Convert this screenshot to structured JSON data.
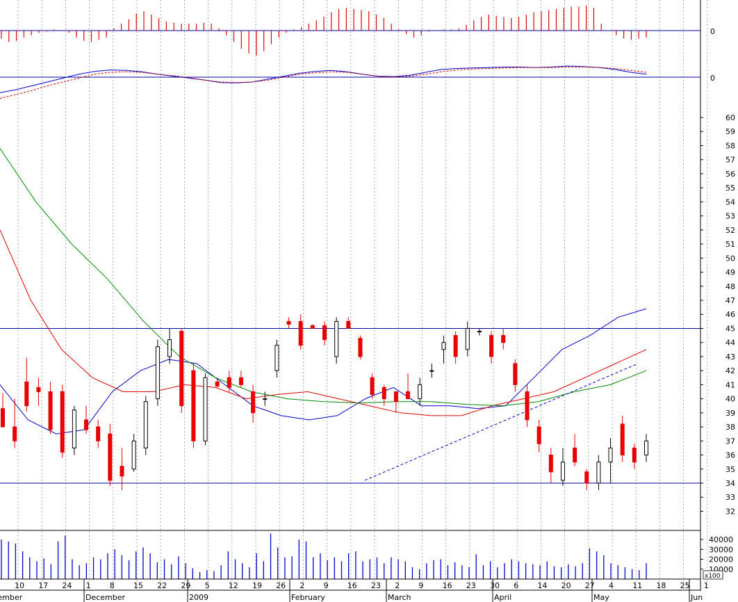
{
  "chart_data": [
    {
      "type": "histogram",
      "panel": "macd_histogram",
      "zero_label": "0",
      "values": [
        -0.35,
        -0.5,
        -0.45,
        -0.3,
        -0.2,
        -0.1,
        -0.05,
        0.05,
        0.0,
        -0.1,
        -0.3,
        -0.45,
        -0.5,
        -0.4,
        -0.3,
        0.1,
        0.3,
        0.5,
        0.75,
        0.85,
        0.7,
        0.55,
        0.4,
        0.35,
        0.3,
        0.3,
        0.3,
        0.35,
        0.3,
        0.1,
        -0.2,
        -0.5,
        -0.8,
        -1.0,
        -1.1,
        -0.9,
        -0.6,
        -0.3,
        -0.1,
        0.05,
        0.15,
        0.3,
        0.45,
        0.6,
        0.8,
        0.95,
        1.0,
        0.95,
        0.9,
        0.85,
        0.7,
        0.55,
        0.3,
        0.05,
        -0.15,
        -0.3,
        -0.2,
        -0.05,
        0.0,
        0.05,
        0.05,
        0.1,
        0.25,
        0.45,
        0.6,
        0.7,
        0.65,
        0.6,
        0.55,
        0.6,
        0.7,
        0.8,
        0.85,
        0.9,
        0.95,
        1.0,
        1.05,
        1.05,
        1.1,
        1.0,
        0.3,
        0.0,
        -0.2,
        -0.35,
        -0.4,
        -0.35,
        -0.3
      ],
      "ylim": [
        -1.5,
        1.5
      ]
    },
    {
      "type": "line",
      "panel": "macd",
      "zero_label": "0",
      "series": [
        {
          "color": "#0000cc",
          "style": "solid",
          "values": [
            -1.6,
            -1.3,
            -0.9,
            -0.5,
            -0.1,
            0.3,
            0.6,
            0.75,
            0.7,
            0.55,
            0.3,
            0.1,
            -0.1,
            -0.3,
            -0.55,
            -0.6,
            -0.5,
            -0.2,
            0.1,
            0.4,
            0.6,
            0.7,
            0.55,
            0.3,
            0.1,
            0.05,
            0.2,
            0.5,
            0.8,
            0.9,
            0.95,
            1.0,
            1.05,
            1.05,
            1.0,
            1.05,
            1.15,
            1.1,
            1.0,
            0.8,
            0.5,
            0.3
          ]
        },
        {
          "color": "#cc0000",
          "style": "dashed",
          "values": [
            -2.2,
            -1.8,
            -1.4,
            -0.9,
            -0.5,
            -0.1,
            0.3,
            0.5,
            0.55,
            0.5,
            0.3,
            0.15,
            -0.05,
            -0.3,
            -0.5,
            -0.55,
            -0.5,
            -0.3,
            0.0,
            0.3,
            0.45,
            0.55,
            0.5,
            0.3,
            0.1,
            0.0,
            0.1,
            0.3,
            0.55,
            0.75,
            0.85,
            0.9,
            0.95,
            1.0,
            1.0,
            1.0,
            1.05,
            1.05,
            1.0,
            0.9,
            0.7,
            0.5
          ]
        }
      ],
      "ylim": [
        -3,
        3
      ]
    },
    {
      "type": "candlestick",
      "panel": "price",
      "x_ticks": [
        "10",
        "17",
        "24",
        "1",
        "8",
        "15",
        "22",
        "29",
        "5",
        "12",
        "19",
        "26",
        "2",
        "9",
        "16",
        "23",
        "2",
        "9",
        "16",
        "23",
        "30",
        "6",
        "14",
        "20",
        "27",
        "4",
        "11",
        "18",
        "25",
        "1"
      ],
      "months": [
        "vember",
        "December",
        "2009",
        "February",
        "March",
        "April",
        "May",
        "Jun"
      ],
      "y_ticks": [
        "32",
        "33",
        "34",
        "35",
        "36",
        "37",
        "38",
        "39",
        "40",
        "41",
        "42",
        "43",
        "44",
        "45",
        "46",
        "47",
        "48",
        "49",
        "50",
        "51",
        "52",
        "53",
        "54",
        "55",
        "56",
        "57",
        "58",
        "59",
        "60"
      ],
      "ylim": [
        31.5,
        60.5
      ],
      "horizontal_lines": [
        45,
        34
      ],
      "candles": [
        {
          "o": 39.3,
          "h": 40.4,
          "l": 38.2,
          "c": 38.0
        },
        {
          "o": 38.0,
          "h": 40.0,
          "l": 36.5,
          "c": 37.0
        },
        {
          "o": 41.2,
          "h": 42.9,
          "l": 39.1,
          "c": 39.5
        },
        {
          "o": 40.8,
          "h": 41.5,
          "l": 39.5,
          "c": 40.5
        },
        {
          "o": 40.5,
          "h": 41.2,
          "l": 37.5,
          "c": 37.8
        },
        {
          "o": 40.5,
          "h": 41.0,
          "l": 35.8,
          "c": 36.2
        },
        {
          "o": 36.5,
          "h": 39.5,
          "l": 36.0,
          "c": 39.2
        },
        {
          "o": 38.5,
          "h": 39.5,
          "l": 37.5,
          "c": 37.8
        },
        {
          "o": 38.0,
          "h": 38.5,
          "l": 36.5,
          "c": 37.0
        },
        {
          "o": 37.5,
          "h": 38.2,
          "l": 33.8,
          "c": 34.2
        },
        {
          "o": 35.2,
          "h": 36.5,
          "l": 33.5,
          "c": 34.5
        },
        {
          "o": 35.0,
          "h": 37.5,
          "l": 34.8,
          "c": 37.0
        },
        {
          "o": 36.5,
          "h": 40.2,
          "l": 36.0,
          "c": 39.8
        },
        {
          "o": 40.0,
          "h": 44.2,
          "l": 39.5,
          "c": 43.7
        },
        {
          "o": 43.0,
          "h": 45.0,
          "l": 42.5,
          "c": 44.2
        },
        {
          "o": 44.8,
          "h": 45.0,
          "l": 39.0,
          "c": 39.5
        },
        {
          "o": 42.0,
          "h": 42.5,
          "l": 36.5,
          "c": 37.0
        },
        {
          "o": 37.0,
          "h": 41.8,
          "l": 36.7,
          "c": 41.5
        },
        {
          "o": 41.2,
          "h": 41.5,
          "l": 40.8,
          "c": 40.9
        },
        {
          "o": 41.5,
          "h": 42.0,
          "l": 40.5,
          "c": 40.8
        },
        {
          "o": 41.5,
          "h": 42.0,
          "l": 40.8,
          "c": 41.0
        },
        {
          "o": 40.5,
          "h": 41.0,
          "l": 38.3,
          "c": 39.0
        },
        {
          "o": 40.0,
          "h": 40.5,
          "l": 39.5,
          "c": 40.0
        },
        {
          "o": 42.0,
          "h": 44.2,
          "l": 41.5,
          "c": 43.8
        },
        {
          "o": 45.5,
          "h": 45.8,
          "l": 45.0,
          "c": 45.3
        },
        {
          "o": 45.5,
          "h": 46.0,
          "l": 43.5,
          "c": 43.8
        },
        {
          "o": 45.2,
          "h": 45.3,
          "l": 45.0,
          "c": 45.0
        },
        {
          "o": 45.2,
          "h": 45.5,
          "l": 43.8,
          "c": 44.2
        },
        {
          "o": 43.0,
          "h": 45.8,
          "l": 42.5,
          "c": 45.5
        },
        {
          "o": 45.5,
          "h": 45.8,
          "l": 45.0,
          "c": 45.0
        },
        {
          "o": 44.3,
          "h": 44.5,
          "l": 42.8,
          "c": 43.0
        },
        {
          "o": 41.5,
          "h": 41.8,
          "l": 40.0,
          "c": 40.3
        },
        {
          "o": 40.8,
          "h": 41.0,
          "l": 39.5,
          "c": 40.0
        },
        {
          "o": 40.5,
          "h": 40.5,
          "l": 39.0,
          "c": 39.8
        },
        {
          "o": 40.5,
          "h": 41.8,
          "l": 40.0,
          "c": 40.0
        },
        {
          "o": 40.0,
          "h": 41.5,
          "l": 39.5,
          "c": 41.0
        },
        {
          "o": 42.0,
          "h": 42.5,
          "l": 41.5,
          "c": 42.0
        },
        {
          "o": 43.5,
          "h": 44.5,
          "l": 42.5,
          "c": 44.0
        },
        {
          "o": 44.5,
          "h": 44.8,
          "l": 42.5,
          "c": 43.0
        },
        {
          "o": 43.5,
          "h": 45.5,
          "l": 43.0,
          "c": 45.0
        },
        {
          "o": 44.8,
          "h": 45.0,
          "l": 44.5,
          "c": 44.8
        },
        {
          "o": 44.5,
          "h": 44.8,
          "l": 42.5,
          "c": 43.0
        },
        {
          "o": 44.5,
          "h": 45.0,
          "l": 43.5,
          "c": 44.0
        },
        {
          "o": 42.5,
          "h": 42.8,
          "l": 40.5,
          "c": 41.0
        },
        {
          "o": 40.5,
          "h": 41.0,
          "l": 38.0,
          "c": 38.5
        },
        {
          "o": 38.0,
          "h": 38.5,
          "l": 36.2,
          "c": 36.8
        },
        {
          "o": 36.0,
          "h": 36.5,
          "l": 34.0,
          "c": 34.8
        },
        {
          "o": 34.2,
          "h": 36.5,
          "l": 33.8,
          "c": 35.5
        },
        {
          "o": 36.5,
          "h": 37.5,
          "l": 35.2,
          "c": 35.5
        },
        {
          "o": 34.8,
          "h": 35.0,
          "l": 33.5,
          "c": 34.0
        },
        {
          "o": 34.0,
          "h": 36.0,
          "l": 33.5,
          "c": 35.5
        },
        {
          "o": 35.5,
          "h": 37.2,
          "l": 34.0,
          "c": 36.5
        },
        {
          "o": 38.2,
          "h": 38.8,
          "l": 35.5,
          "c": 36.0
        },
        {
          "o": 36.5,
          "h": 36.8,
          "l": 35.0,
          "c": 35.5
        },
        {
          "o": 36.0,
          "h": 37.5,
          "l": 35.5,
          "c": 37.0
        }
      ],
      "series": [
        {
          "color": "#0000cc",
          "values": [
            41.0,
            38.5,
            37.5,
            37.8,
            40.5,
            42.0,
            42.8,
            42.5,
            41.0,
            39.5,
            38.8,
            38.5,
            38.8,
            40.0,
            40.8,
            39.5,
            39.5,
            39.3,
            39.5,
            41.5,
            43.5,
            44.5,
            45.8,
            46.4
          ]
        },
        {
          "color": "#dd0000",
          "values": [
            52.0,
            47.0,
            43.5,
            41.5,
            40.5,
            40.5,
            41.0,
            40.8,
            40.0,
            40.3,
            40.5,
            40.0,
            39.5,
            39.0,
            38.8,
            38.8,
            39.5,
            40.0,
            40.5,
            41.5,
            42.5,
            43.5
          ]
        },
        {
          "color": "#008800",
          "values": [
            57.8,
            54.0,
            51.0,
            48.5,
            45.5,
            43.0,
            41.5,
            40.5,
            40.0,
            39.8,
            39.7,
            39.8,
            39.8,
            39.6,
            39.5,
            39.8,
            40.5,
            41.0,
            42.0
          ]
        }
      ],
      "trendline": {
        "color": "#0000cc",
        "style": "dashed",
        "from": [
          23,
          34.2
        ],
        "to": [
          46.5,
          42.5
        ]
      }
    },
    {
      "type": "bar",
      "panel": "volume",
      "y_ticks": [
        "40000",
        "30000",
        "20000",
        "10000"
      ],
      "unit_label": "x100",
      "ylim": [
        0,
        45000
      ],
      "values": [
        40000,
        38000,
        36000,
        28000,
        22000,
        18000,
        21000,
        15000,
        38000,
        44000,
        20000,
        14000,
        16000,
        22000,
        20000,
        26000,
        30000,
        24000,
        19000,
        28000,
        32000,
        26000,
        17000,
        20000,
        15000,
        23000,
        16000,
        11000,
        7000,
        9000,
        8000,
        14000,
        28000,
        20000,
        16000,
        12000,
        26000,
        18000,
        46000,
        32000,
        22000,
        23000,
        40000,
        38000,
        22000,
        26000,
        19000,
        22000,
        18000,
        26000,
        28000,
        18000,
        20000,
        22000,
        16000,
        22000,
        20000,
        18000,
        12000,
        10000,
        16000,
        19000,
        20000,
        14000,
        17000,
        14000,
        12000,
        25000,
        14000,
        18000,
        12000,
        16000,
        20000,
        18000,
        16000,
        15000,
        14000,
        18000,
        13000,
        12000,
        15000,
        13000,
        16000,
        31000,
        28000,
        24000,
        16000,
        14000,
        12000,
        10000,
        9000,
        16000
      ]
    }
  ]
}
